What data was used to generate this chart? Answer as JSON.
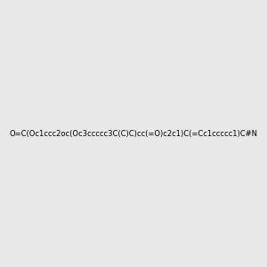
{
  "smiles": "O=C(Oc1ccc2oc(Oc3ccccc3C(C)C)cc(=O)c2c1)C(=Cc1ccccc1)C#N",
  "bg_color": "#e8e8e8",
  "figsize": [
    3.0,
    3.0
  ],
  "dpi": 100
}
